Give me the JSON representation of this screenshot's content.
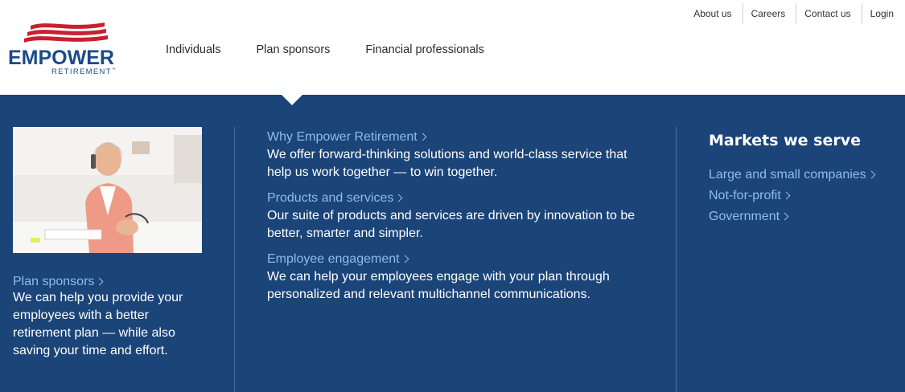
{
  "brand": {
    "name": "EMPOWER",
    "sub": "RETIREMENT",
    "tm": "™",
    "colors": {
      "navy": "#1b4a8a",
      "red": "#c8202f",
      "panel": "#1b4478",
      "link": "#8dbcf0"
    }
  },
  "utility_nav": [
    {
      "label": "About us"
    },
    {
      "label": "Careers"
    },
    {
      "label": "Contact us"
    },
    {
      "label": "Login"
    }
  ],
  "main_nav": [
    {
      "label": "Individuals"
    },
    {
      "label": "Plan sponsors"
    },
    {
      "label": "Financial professionals"
    }
  ],
  "mega_menu": {
    "feature": {
      "image_icon": "photo-woman-on-phone",
      "link": "Plan sponsors",
      "desc": "We can help you provide your employees with a better retirement plan — while also saving your time and effort."
    },
    "items": [
      {
        "link": "Why Empower Retirement",
        "desc": "We offer forward-thinking solutions and world-class service that help us work together — to win together."
      },
      {
        "link": "Products and services",
        "desc": "Our suite of products and services are driven by innovation to be better, smarter and simpler."
      },
      {
        "link": "Employee engagement",
        "desc": "We can help your employees engage with your plan through personalized and relevant multichannel communications."
      }
    ],
    "markets": {
      "heading": "Markets we serve",
      "links": [
        {
          "label": "Large and small companies"
        },
        {
          "label": "Not-for-profit"
        },
        {
          "label": "Government"
        }
      ]
    }
  }
}
